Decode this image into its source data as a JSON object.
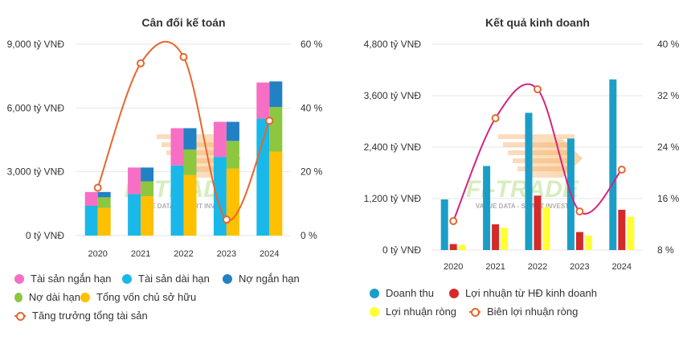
{
  "watermark": {
    "brand": "FI-TRADE",
    "tagline": "VALUE DATA - SMART INVEST"
  },
  "chart_data": [
    {
      "type": "bar",
      "title": "Cân đối kế toán",
      "categories": [
        "2020",
        "2021",
        "2022",
        "2023",
        "2024"
      ],
      "stacks": [
        {
          "name": "assets",
          "series": [
            {
              "name": "Tài sản dài hạn",
              "color": "#1ab8e8",
              "values": [
                1400,
                1950,
                3300,
                3700,
                5500
              ]
            },
            {
              "name": "Tài sản ngắn hạn",
              "color": "#f66fc5",
              "values": [
                650,
                1250,
                1750,
                1650,
                1700
              ]
            }
          ]
        },
        {
          "name": "capital",
          "series": [
            {
              "name": "Tổng vốn chủ sở hữu",
              "color": "#ffc000",
              "values": [
                1300,
                1850,
                2850,
                3150,
                3950
              ]
            },
            {
              "name": "Nợ dài hạn",
              "color": "#8dc63f",
              "values": [
                500,
                700,
                1200,
                1300,
                2100
              ]
            },
            {
              "name": "Nợ ngắn hạn",
              "color": "#2281c4",
              "values": [
                250,
                650,
                1000,
                900,
                1200
              ]
            }
          ]
        }
      ],
      "line": {
        "name": "Tăng trưởng tổng tài sản",
        "color": "#e8662e",
        "values": [
          15,
          54,
          56,
          5,
          36
        ]
      },
      "y_left": {
        "min": 0,
        "max": 9000,
        "ticks": [
          "0 tỷ VNĐ",
          "3,000 tỷ VNĐ",
          "6,000 tỷ VNĐ",
          "9,000 tỷ VNĐ"
        ]
      },
      "y_right": {
        "min": 0,
        "max": 60,
        "ticks": [
          "0 %",
          "20 %",
          "40 %",
          "60 %"
        ]
      },
      "legend": [
        [
          "Tài sản ngắn hạn",
          "Tài sản dài hạn",
          "Nợ ngắn hạn"
        ],
        [
          "Nợ dài hạn",
          "Tổng vốn chủ sở hữu"
        ],
        [
          "Tăng trưởng tổng tài sản"
        ]
      ]
    },
    {
      "type": "bar",
      "title": "Kết quả kinh doanh",
      "categories": [
        "2020",
        "2021",
        "2022",
        "2023",
        "2024"
      ],
      "series": [
        {
          "name": "Doanh thu",
          "color": "#1a9ec8",
          "values": [
            1180,
            1960,
            3200,
            2600,
            3980
          ]
        },
        {
          "name": "Lợi nhuận từ HĐ kinh doanh",
          "color": "#d42a2a",
          "values": [
            140,
            600,
            1270,
            420,
            940
          ]
        },
        {
          "name": "Lợi nhuận ròng",
          "color": "#ffff33",
          "values": [
            120,
            520,
            1000,
            340,
            780
          ]
        }
      ],
      "line": {
        "name": "Biên lợi nhuận ròng",
        "color": "#d4237c",
        "values": [
          12.5,
          28.5,
          33,
          14,
          20.5
        ]
      },
      "y_left": {
        "min": 0,
        "max": 4800,
        "ticks": [
          "0 tỷ VNĐ",
          "1,200 tỷ VNĐ",
          "2,400 tỷ VNĐ",
          "3,600 tỷ VNĐ",
          "4,800 tỷ VNĐ"
        ]
      },
      "y_right": {
        "min": 8,
        "max": 40,
        "ticks": [
          "8 %",
          "16 %",
          "24 %",
          "32 %",
          "40 %"
        ]
      },
      "legend": [
        [
          "Doanh thu",
          "Lợi nhuận từ HĐ kinh doanh"
        ],
        [
          "Lợi nhuận ròng",
          "Biên lợi nhuận ròng"
        ]
      ]
    }
  ]
}
